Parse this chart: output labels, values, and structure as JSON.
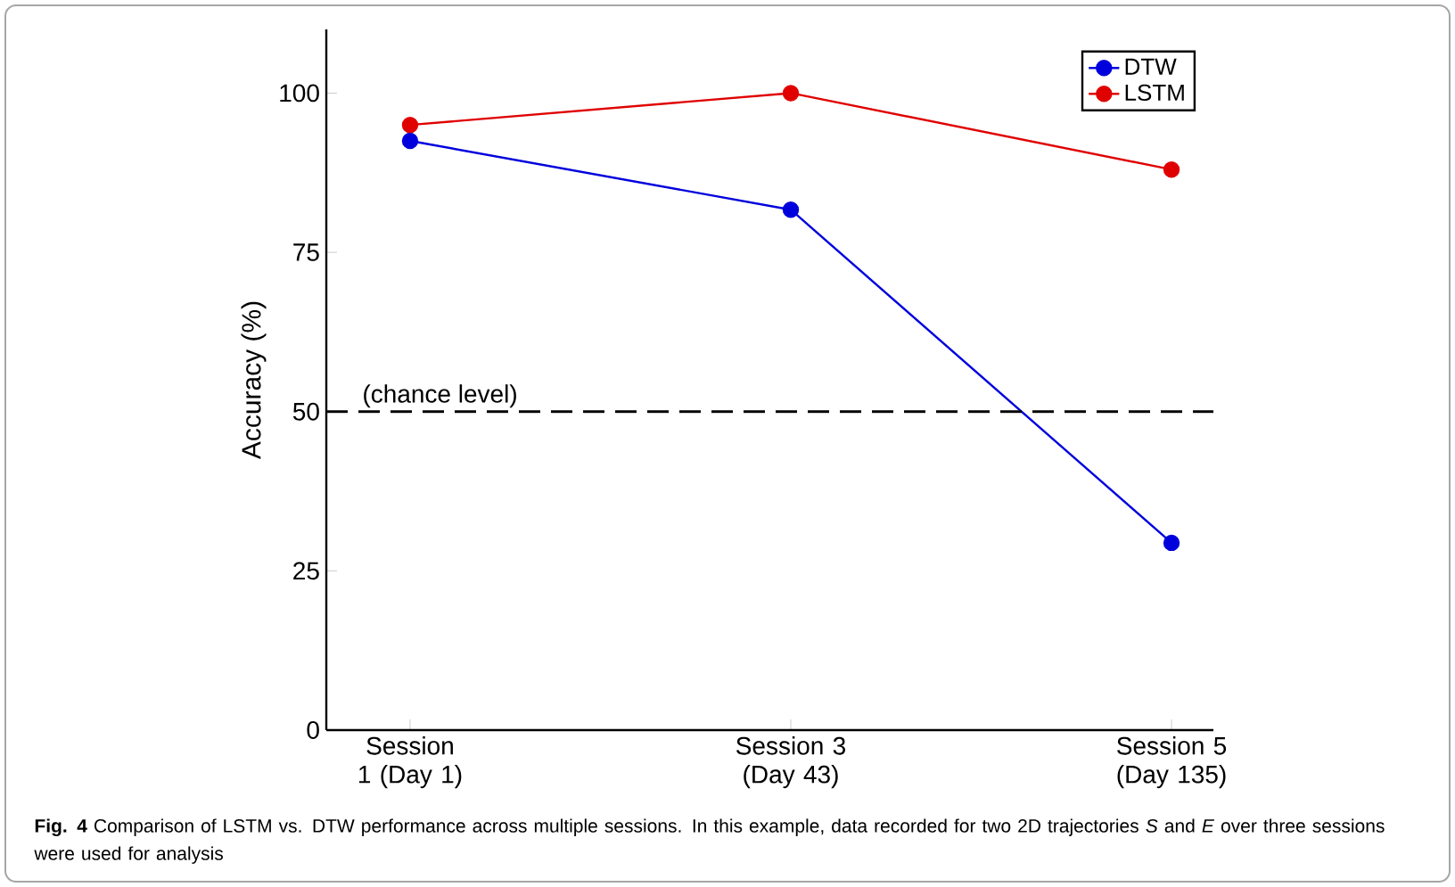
{
  "chart_data": {
    "type": "line",
    "ylabel": "Accuracy (%)",
    "categories": [
      "Session 1 (Day 1)",
      "Session 3 (Day 43)",
      "Session 5 (Day 135)"
    ],
    "series": [
      {
        "name": "DTW",
        "color": "#0000dd",
        "values": [
          92.5,
          81.7,
          29.4
        ]
      },
      {
        "name": "LSTM",
        "color": "#e00000",
        "values": [
          95,
          100,
          88
        ]
      }
    ],
    "ylim": [
      0,
      110
    ],
    "yticks": [
      0,
      25,
      50,
      75,
      100
    ],
    "ref_lines": [
      {
        "axis": "y",
        "value": 50,
        "label": "(chance level)",
        "color": "#000000",
        "line_style": "dashed"
      }
    ],
    "legend": "top right",
    "marker": "circle",
    "line_style": "solid",
    "grid": false,
    "annotations": [
      "**Fig. 4** Comparison of LSTM vs. DTW performance across multiple sessions. In this example, data recorded for two 2D trajectories *S* and *E* over three sessions were used for analysis"
    ]
  }
}
